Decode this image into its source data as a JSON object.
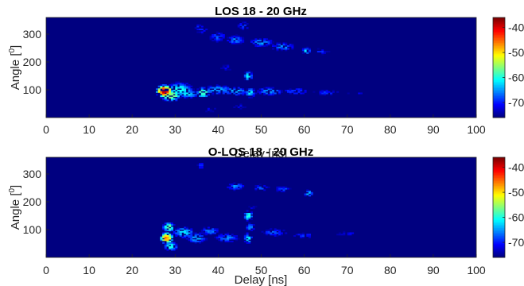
{
  "chart_data": [
    {
      "type": "heatmap",
      "title": "LOS 18 - 20 GHz",
      "xlabel": "Delay [ns]",
      "ylabel_main": "Angle [",
      "ylabel_sup": "0",
      "ylabel_end": "]",
      "xlim": [
        0,
        100
      ],
      "ylim": [
        0,
        360
      ],
      "xticks": [
        0,
        10,
        20,
        30,
        40,
        50,
        60,
        70,
        80,
        90,
        100
      ],
      "yticks": [
        100,
        200,
        300
      ],
      "colorbar": {
        "clim": [
          -76,
          -36
        ],
        "ticks": [
          -40,
          -50,
          -60,
          -70
        ]
      },
      "background_level": -76,
      "blobs": [
        {
          "delay": 27.5,
          "angle": 95,
          "power": -37,
          "sd": 1.0,
          "sa": 12
        },
        {
          "delay": 29,
          "angle": 80,
          "power": -52,
          "sd": 1.6,
          "sa": 14
        },
        {
          "delay": 31,
          "angle": 100,
          "power": -58,
          "sd": 2.5,
          "sa": 20
        },
        {
          "delay": 33,
          "angle": 85,
          "power": -60,
          "sd": 2.0,
          "sa": 12
        },
        {
          "delay": 36.5,
          "angle": 90,
          "power": -55,
          "sd": 1.2,
          "sa": 14
        },
        {
          "delay": 40,
          "angle": 100,
          "power": -62,
          "sd": 3.0,
          "sa": 15
        },
        {
          "delay": 44,
          "angle": 95,
          "power": -62,
          "sd": 2.5,
          "sa": 14
        },
        {
          "delay": 47,
          "angle": 150,
          "power": -58,
          "sd": 0.8,
          "sa": 14
        },
        {
          "delay": 47.5,
          "angle": 90,
          "power": -60,
          "sd": 1.0,
          "sa": 14
        },
        {
          "delay": 52,
          "angle": 95,
          "power": -64,
          "sd": 3.0,
          "sa": 14
        },
        {
          "delay": 58,
          "angle": 95,
          "power": -66,
          "sd": 3.0,
          "sa": 12
        },
        {
          "delay": 65,
          "angle": 90,
          "power": -68,
          "sd": 3.5,
          "sa": 12
        },
        {
          "delay": 72,
          "angle": 85,
          "power": -70,
          "sd": 2.5,
          "sa": 10
        },
        {
          "delay": 36,
          "angle": 320,
          "power": -66,
          "sd": 1.5,
          "sa": 18
        },
        {
          "delay": 40,
          "angle": 290,
          "power": -66,
          "sd": 2.0,
          "sa": 18
        },
        {
          "delay": 44,
          "angle": 280,
          "power": -64,
          "sd": 2.0,
          "sa": 16
        },
        {
          "delay": 46,
          "angle": 330,
          "power": -66,
          "sd": 1.5,
          "sa": 14
        },
        {
          "delay": 50,
          "angle": 270,
          "power": -63,
          "sd": 2.5,
          "sa": 14
        },
        {
          "delay": 55,
          "angle": 255,
          "power": -64,
          "sd": 2.5,
          "sa": 14
        },
        {
          "delay": 60.5,
          "angle": 240,
          "power": -60,
          "sd": 0.8,
          "sa": 10
        },
        {
          "delay": 64,
          "angle": 240,
          "power": -68,
          "sd": 2.0,
          "sa": 14
        },
        {
          "delay": 42,
          "angle": 180,
          "power": -70,
          "sd": 2.0,
          "sa": 16
        },
        {
          "delay": 38,
          "angle": 30,
          "power": -70,
          "sd": 2.0,
          "sa": 12
        },
        {
          "delay": 45,
          "angle": 40,
          "power": -70,
          "sd": 2.0,
          "sa": 12
        }
      ]
    },
    {
      "type": "heatmap",
      "title": "O-LOS 18 - 20 GHz",
      "xlabel": "Delay [ns]",
      "ylabel_main": "Angle [",
      "ylabel_sup": "0",
      "ylabel_end": "]",
      "xlim": [
        0,
        100
      ],
      "ylim": [
        0,
        360
      ],
      "xticks": [
        0,
        10,
        20,
        30,
        40,
        50,
        60,
        70,
        80,
        90,
        100
      ],
      "yticks": [
        100,
        200,
        300
      ],
      "colorbar": {
        "clim": [
          -76,
          -36
        ],
        "ticks": [
          -40,
          -50,
          -60,
          -70
        ]
      },
      "background_level": -76,
      "blobs": [
        {
          "delay": 28,
          "angle": 70,
          "power": -44,
          "sd": 0.9,
          "sa": 12
        },
        {
          "delay": 28.5,
          "angle": 110,
          "power": -54,
          "sd": 1.0,
          "sa": 12
        },
        {
          "delay": 29,
          "angle": 40,
          "power": -58,
          "sd": 1.2,
          "sa": 12
        },
        {
          "delay": 32,
          "angle": 90,
          "power": -60,
          "sd": 2.0,
          "sa": 16
        },
        {
          "delay": 35,
          "angle": 70,
          "power": -62,
          "sd": 2.0,
          "sa": 16
        },
        {
          "delay": 38,
          "angle": 95,
          "power": -64,
          "sd": 2.0,
          "sa": 14
        },
        {
          "delay": 42,
          "angle": 70,
          "power": -64,
          "sd": 2.5,
          "sa": 16
        },
        {
          "delay": 47,
          "angle": 150,
          "power": -58,
          "sd": 0.8,
          "sa": 14
        },
        {
          "delay": 47,
          "angle": 70,
          "power": -60,
          "sd": 0.8,
          "sa": 16
        },
        {
          "delay": 47.5,
          "angle": 110,
          "power": -62,
          "sd": 0.9,
          "sa": 12
        },
        {
          "delay": 53,
          "angle": 90,
          "power": -66,
          "sd": 3.0,
          "sa": 14
        },
        {
          "delay": 60,
          "angle": 80,
          "power": -68,
          "sd": 3.0,
          "sa": 12
        },
        {
          "delay": 70,
          "angle": 85,
          "power": -70,
          "sd": 4.0,
          "sa": 10
        },
        {
          "delay": 86,
          "angle": 90,
          "power": -72,
          "sd": 0.6,
          "sa": 6
        },
        {
          "delay": 44,
          "angle": 255,
          "power": -64,
          "sd": 2.0,
          "sa": 12
        },
        {
          "delay": 50,
          "angle": 250,
          "power": -66,
          "sd": 2.0,
          "sa": 12
        },
        {
          "delay": 55,
          "angle": 245,
          "power": -66,
          "sd": 2.0,
          "sa": 12
        },
        {
          "delay": 61,
          "angle": 230,
          "power": -60,
          "sd": 0.8,
          "sa": 10
        },
        {
          "delay": 36,
          "angle": 330,
          "power": -68,
          "sd": 1.0,
          "sa": 16
        },
        {
          "delay": 48,
          "angle": 180,
          "power": -70,
          "sd": 1.5,
          "sa": 10
        }
      ]
    }
  ]
}
